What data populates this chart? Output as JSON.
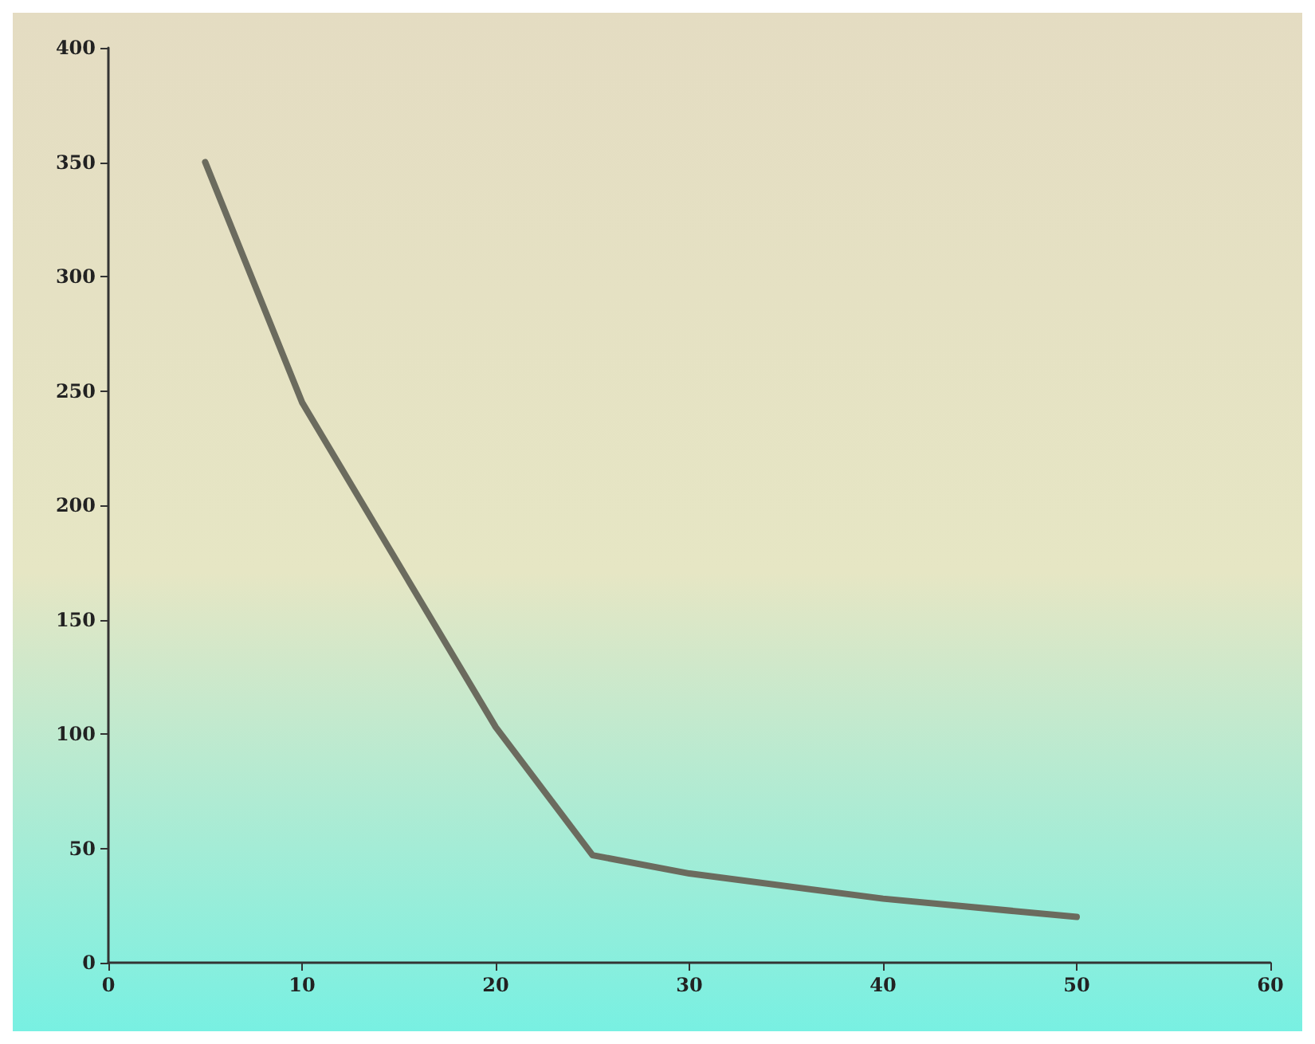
{
  "chart_data": {
    "type": "line",
    "x": [
      5,
      10,
      20,
      25,
      30,
      40,
      50
    ],
    "series": [
      {
        "color": "#6b6b5e",
        "values": [
          350,
          245,
          103,
          47,
          39,
          28,
          20
        ]
      }
    ],
    "xlim": [
      0,
      60
    ],
    "xticks": [
      0,
      10,
      20,
      30,
      40,
      50,
      60
    ],
    "ylim": [
      0,
      400
    ],
    "yticks": [
      0,
      50,
      100,
      150,
      200,
      250,
      300,
      350,
      400
    ],
    "grid": false,
    "marker": "none",
    "line_style": "solid"
  }
}
